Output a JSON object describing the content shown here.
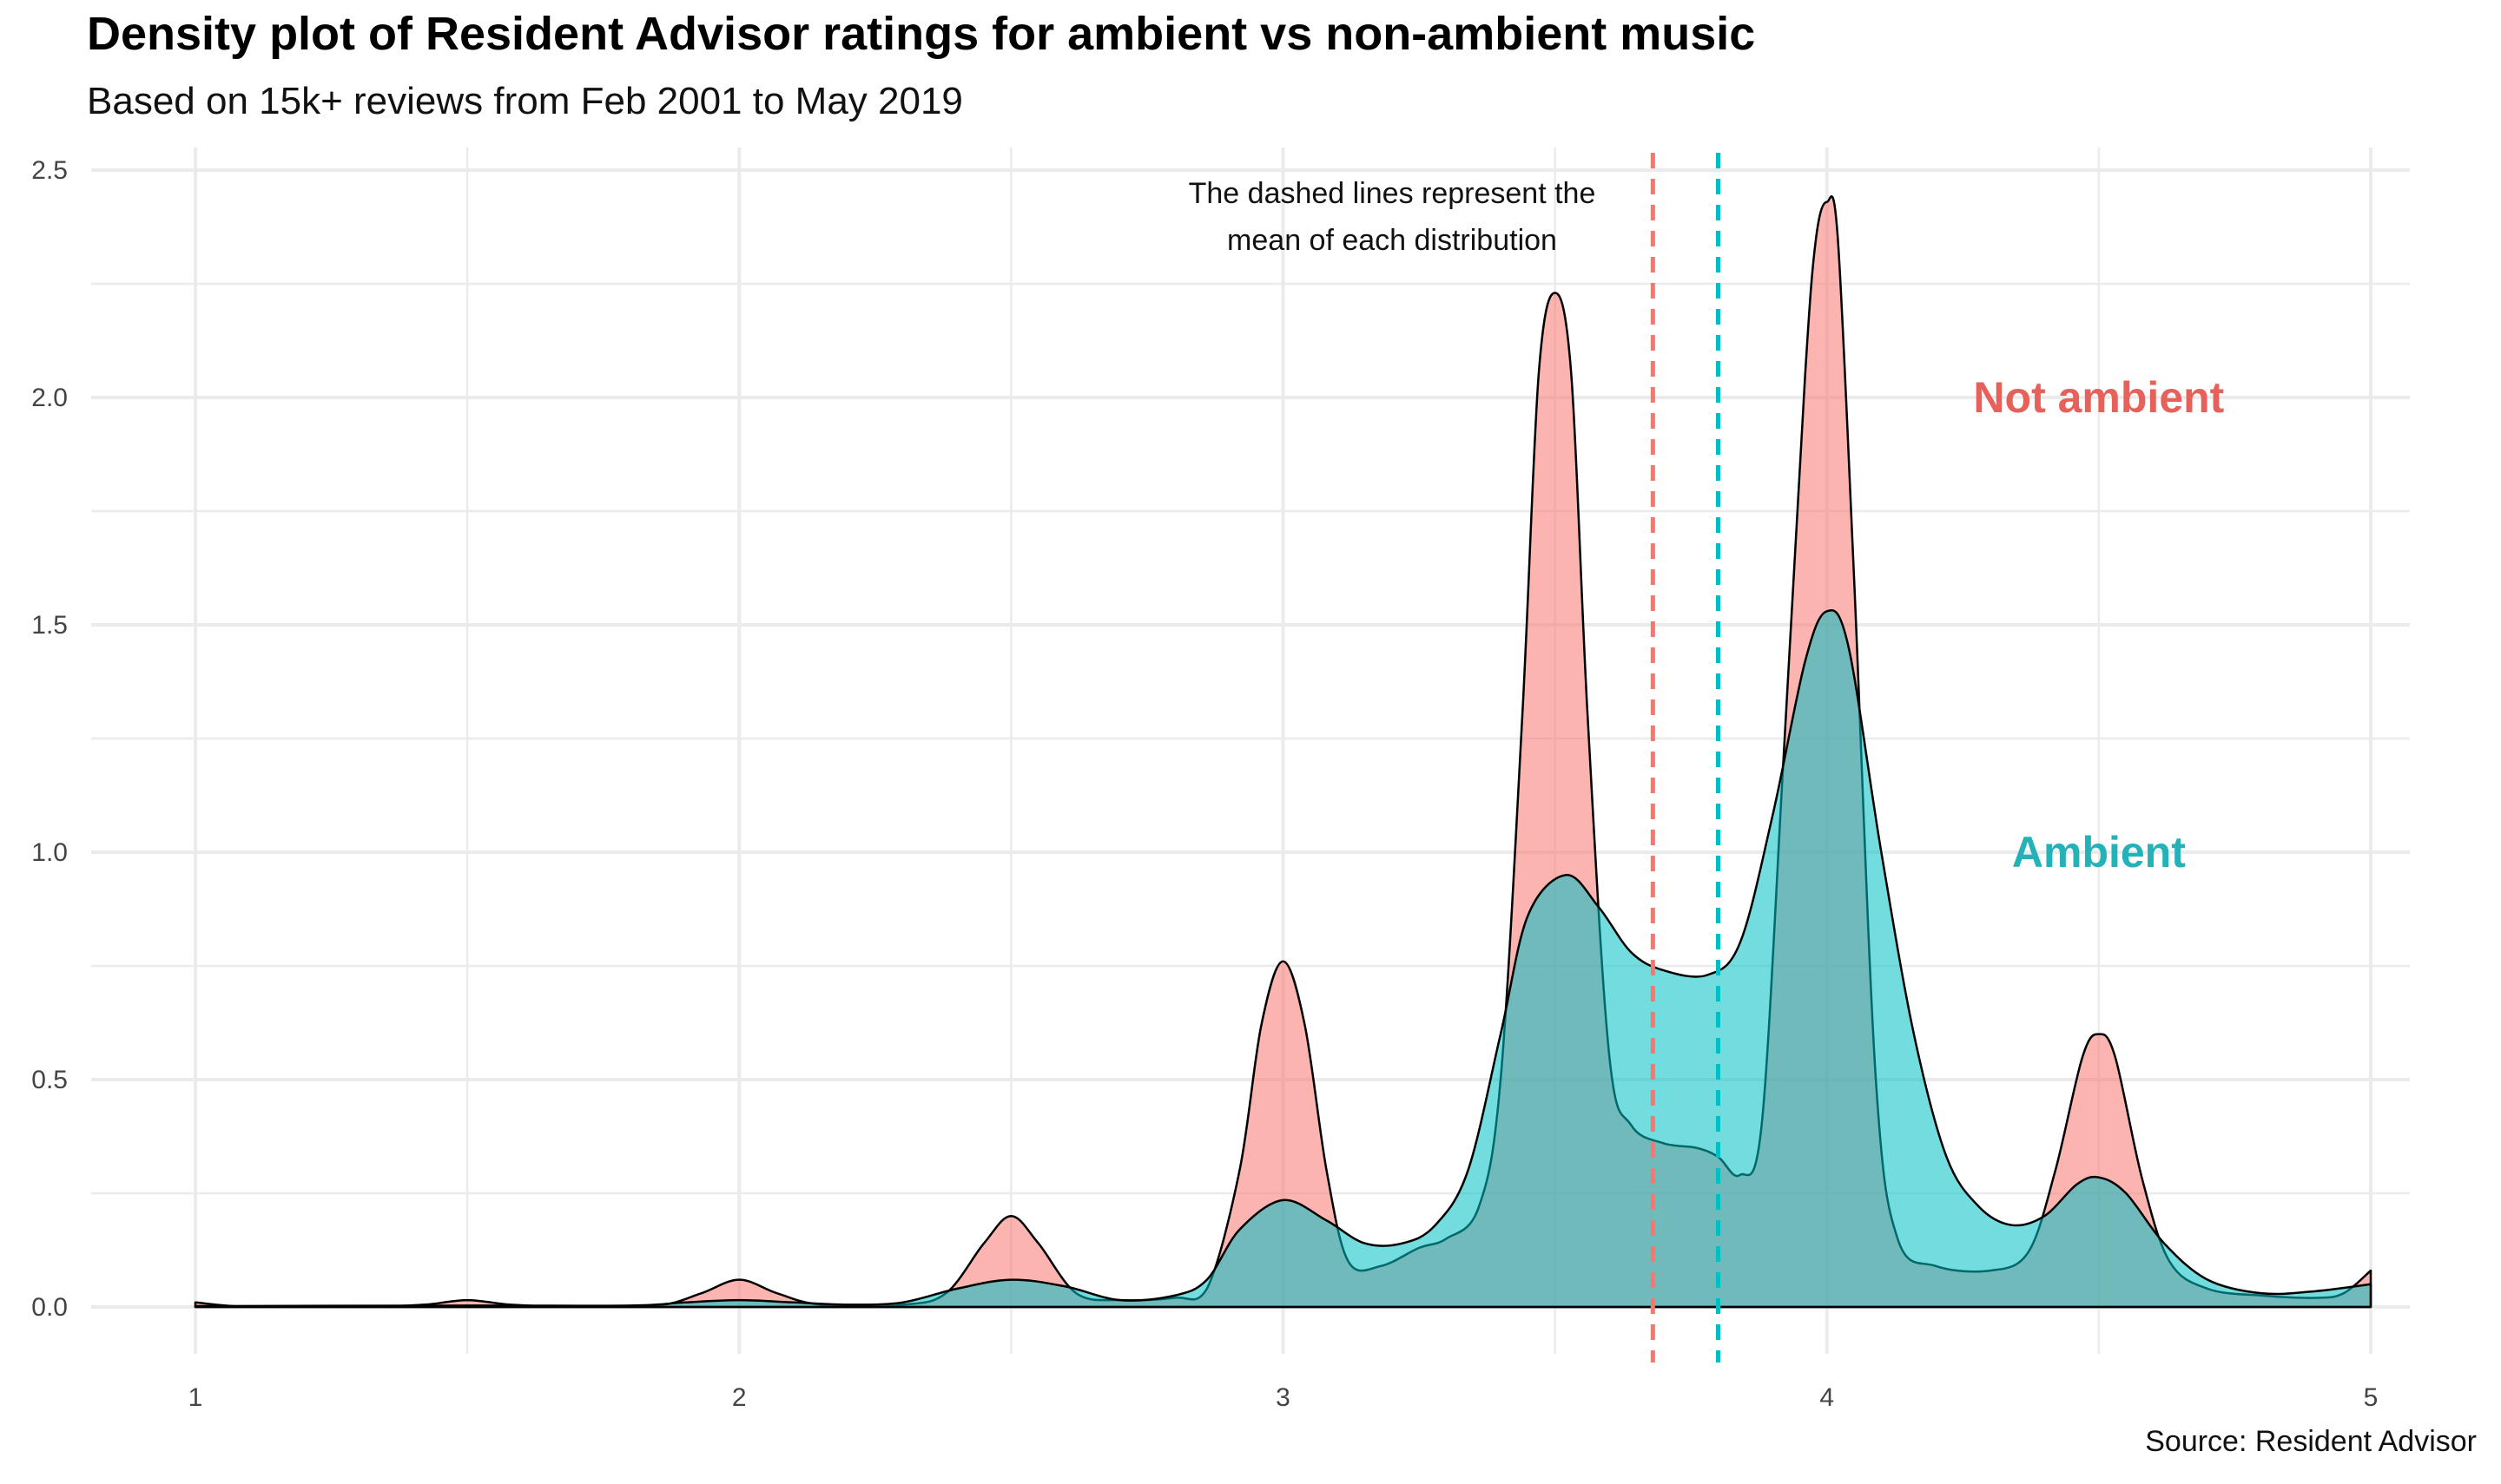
{
  "title": "Density plot of Resident Advisor ratings for ambient vs non-ambient music",
  "subtitle": "Based on 15k+ reviews from Feb 2001 to May 2019",
  "caption": "Source: Resident Advisor",
  "annotation": [
    "The dashed lines represent the",
    "mean of each distribution"
  ],
  "colors": {
    "not_ambient": "#F8766D",
    "ambient": "#00BFC4",
    "not_ambient_label": "#E8605A",
    "ambient_label": "#22B2B8"
  },
  "chart_data": {
    "type": "area",
    "xlim": [
      1,
      5
    ],
    "ylim": [
      0,
      2.5
    ],
    "x_ticks": [
      "1",
      "2",
      "3",
      "4",
      "5"
    ],
    "y_ticks": [
      "0.0",
      "0.5",
      "1.0",
      "1.5",
      "2.0",
      "2.5"
    ],
    "grid": true,
    "series": [
      {
        "name": "Not ambient",
        "color": "#F8766D",
        "mean": 3.68,
        "label_pos": [
          4.5,
          2.0
        ],
        "points": [
          [
            1.0,
            0.01
          ],
          [
            1.1,
            0.0
          ],
          [
            1.3,
            0.0
          ],
          [
            1.42,
            0.005
          ],
          [
            1.5,
            0.015
          ],
          [
            1.58,
            0.005
          ],
          [
            1.7,
            0.0
          ],
          [
            1.85,
            0.003
          ],
          [
            1.93,
            0.03
          ],
          [
            2.0,
            0.06
          ],
          [
            2.07,
            0.03
          ],
          [
            2.15,
            0.005
          ],
          [
            2.3,
            0.005
          ],
          [
            2.38,
            0.03
          ],
          [
            2.45,
            0.14
          ],
          [
            2.5,
            0.2
          ],
          [
            2.55,
            0.14
          ],
          [
            2.62,
            0.03
          ],
          [
            2.7,
            0.015
          ],
          [
            2.8,
            0.02
          ],
          [
            2.86,
            0.04
          ],
          [
            2.92,
            0.3
          ],
          [
            2.96,
            0.62
          ],
          [
            3.0,
            0.76
          ],
          [
            3.04,
            0.62
          ],
          [
            3.08,
            0.3
          ],
          [
            3.12,
            0.1
          ],
          [
            3.18,
            0.09
          ],
          [
            3.25,
            0.13
          ],
          [
            3.3,
            0.15
          ],
          [
            3.36,
            0.22
          ],
          [
            3.4,
            0.5
          ],
          [
            3.44,
            1.3
          ],
          [
            3.47,
            2.05
          ],
          [
            3.5,
            2.23
          ],
          [
            3.53,
            2.05
          ],
          [
            3.56,
            1.3
          ],
          [
            3.6,
            0.55
          ],
          [
            3.64,
            0.4
          ],
          [
            3.7,
            0.36
          ],
          [
            3.76,
            0.35
          ],
          [
            3.8,
            0.33
          ],
          [
            3.84,
            0.29
          ],
          [
            3.88,
            0.4
          ],
          [
            3.92,
            1.2
          ],
          [
            3.96,
            2.05
          ],
          [
            3.98,
            2.35
          ],
          [
            4.0,
            2.43
          ],
          [
            4.02,
            2.35
          ],
          [
            4.05,
            1.6
          ],
          [
            4.09,
            0.5
          ],
          [
            4.13,
            0.15
          ],
          [
            4.2,
            0.09
          ],
          [
            4.3,
            0.08
          ],
          [
            4.37,
            0.12
          ],
          [
            4.42,
            0.3
          ],
          [
            4.47,
            0.55
          ],
          [
            4.5,
            0.6
          ],
          [
            4.53,
            0.55
          ],
          [
            4.58,
            0.28
          ],
          [
            4.63,
            0.1
          ],
          [
            4.7,
            0.04
          ],
          [
            4.8,
            0.025
          ],
          [
            4.9,
            0.02
          ],
          [
            4.95,
            0.03
          ],
          [
            5.0,
            0.08
          ]
        ]
      },
      {
        "name": "Ambient",
        "color": "#00BFC4",
        "mean": 3.8,
        "label_pos": [
          4.5,
          1.0
        ],
        "points": [
          [
            1.0,
            0.002
          ],
          [
            1.5,
            0.003
          ],
          [
            1.8,
            0.003
          ],
          [
            1.9,
            0.01
          ],
          [
            2.0,
            0.015
          ],
          [
            2.1,
            0.01
          ],
          [
            2.2,
            0.005
          ],
          [
            2.3,
            0.01
          ],
          [
            2.4,
            0.04
          ],
          [
            2.5,
            0.06
          ],
          [
            2.6,
            0.045
          ],
          [
            2.7,
            0.015
          ],
          [
            2.8,
            0.025
          ],
          [
            2.86,
            0.06
          ],
          [
            2.92,
            0.17
          ],
          [
            3.0,
            0.235
          ],
          [
            3.08,
            0.19
          ],
          [
            3.15,
            0.14
          ],
          [
            3.22,
            0.14
          ],
          [
            3.28,
            0.18
          ],
          [
            3.34,
            0.3
          ],
          [
            3.4,
            0.6
          ],
          [
            3.45,
            0.86
          ],
          [
            3.52,
            0.95
          ],
          [
            3.58,
            0.88
          ],
          [
            3.64,
            0.78
          ],
          [
            3.7,
            0.74
          ],
          [
            3.78,
            0.73
          ],
          [
            3.84,
            0.8
          ],
          [
            3.9,
            1.08
          ],
          [
            3.96,
            1.42
          ],
          [
            4.0,
            1.53
          ],
          [
            4.04,
            1.45
          ],
          [
            4.1,
            1.0
          ],
          [
            4.16,
            0.6
          ],
          [
            4.22,
            0.33
          ],
          [
            4.28,
            0.22
          ],
          [
            4.34,
            0.18
          ],
          [
            4.4,
            0.2
          ],
          [
            4.46,
            0.27
          ],
          [
            4.5,
            0.285
          ],
          [
            4.55,
            0.25
          ],
          [
            4.62,
            0.14
          ],
          [
            4.7,
            0.06
          ],
          [
            4.8,
            0.03
          ],
          [
            4.9,
            0.035
          ],
          [
            5.0,
            0.05
          ]
        ]
      }
    ]
  }
}
